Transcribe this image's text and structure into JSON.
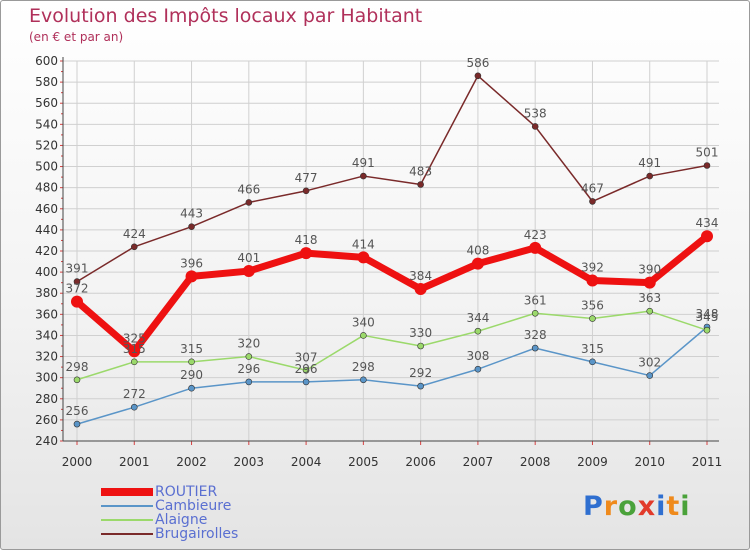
{
  "chart_data": {
    "type": "line",
    "title": "Evolution des Impôts locaux par Habitant",
    "subtitle": "(en € et par an)",
    "categories": [
      "2000",
      "2001",
      "2002",
      "2003",
      "2004",
      "2005",
      "2006",
      "2007",
      "2008",
      "2009",
      "2010",
      "2011"
    ],
    "ylim": [
      240,
      600
    ],
    "yticks": [
      240,
      260,
      280,
      300,
      320,
      340,
      360,
      380,
      400,
      420,
      440,
      460,
      480,
      500,
      520,
      540,
      560,
      580,
      600
    ],
    "series": [
      {
        "name": "ROUTIER",
        "color": "#ee1111",
        "values": [
          372,
          325,
          396,
          401,
          418,
          414,
          384,
          408,
          423,
          392,
          390,
          434
        ]
      },
      {
        "name": "Cambieure",
        "color": "#5a95c8",
        "values": [
          256,
          272,
          290,
          296,
          296,
          298,
          292,
          308,
          328,
          315,
          302,
          348
        ]
      },
      {
        "name": "Alaigne",
        "color": "#9bd96b",
        "values": [
          298,
          315,
          315,
          320,
          307,
          340,
          330,
          344,
          361,
          356,
          363,
          345
        ]
      },
      {
        "name": "Brugairolles",
        "color": "#7a2a2a",
        "values": [
          391,
          424,
          443,
          466,
          477,
          491,
          483,
          586,
          538,
          467,
          491,
          501
        ]
      }
    ]
  },
  "logo": {
    "text": "Proxiti",
    "letters": [
      "P",
      "r",
      "o",
      "x",
      "i",
      "t",
      "i"
    ],
    "colors": [
      "#2f6fd0",
      "#ef8a1c",
      "#4aa23a",
      "#e23a2a",
      "#2f6fd0",
      "#ef8a1c",
      "#4aa23a"
    ]
  }
}
